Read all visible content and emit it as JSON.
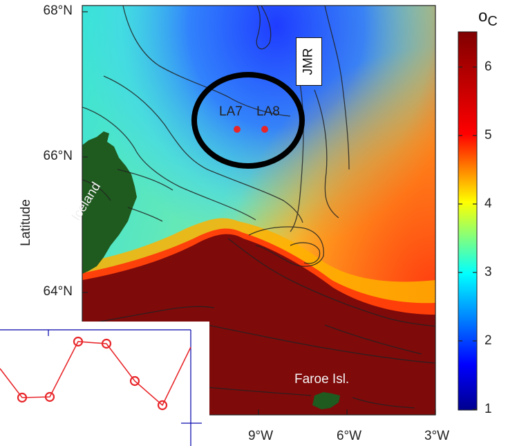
{
  "map": {
    "ylabel": "Latitude",
    "lat_ticks": [
      "68°N",
      "66°N",
      "64°N"
    ],
    "lon_ticks": [
      "9°W",
      "6°W",
      "3°W"
    ],
    "labels": {
      "iceland": "Iceland",
      "faroe": "Faroe Isl.",
      "jmr": "JMR",
      "station_la7": "LA7",
      "station_la8": "LA8"
    },
    "stations": [
      {
        "name": "LA7",
        "color": "#e8262a"
      },
      {
        "name": "LA8",
        "color": "#e8262a"
      }
    ],
    "land_color": "#1f5a1f",
    "colormap": "jet"
  },
  "colorbar": {
    "unit": "C",
    "ticks": [
      "6",
      "5",
      "4",
      "3",
      "2",
      "1"
    ],
    "range": [
      1,
      6.5
    ]
  },
  "inset": {
    "series_color": "#e8262a",
    "marker": "circle"
  }
}
